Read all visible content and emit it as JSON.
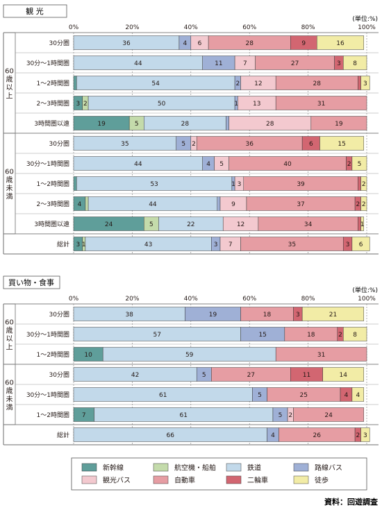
{
  "chart_data": [
    {
      "type": "bar",
      "orientation": "horizontal",
      "stacked": true,
      "title": "観 光",
      "unit_label": "(単位:%)",
      "xlim": [
        0,
        100
      ],
      "x_ticks": [
        "0%",
        "20%",
        "40%",
        "60%",
        "80%",
        "100%"
      ],
      "groups": [
        {
          "label": "60歳以上",
          "rows": [
            0,
            1,
            2,
            3,
            4
          ]
        },
        {
          "label": "60歳未満",
          "rows": [
            5,
            6,
            7,
            8,
            9
          ]
        }
      ],
      "categories": [
        "30分圏",
        "30分〜1時間圏",
        "1〜2時間圏",
        "2〜3時間圏",
        "3時間圏以遠",
        "30分圏",
        "30分〜1時間圏",
        "1〜2時間圏",
        "2〜3時間圏",
        "3時間圏以遠",
        "総計"
      ],
      "series": [
        {
          "name": "新幹線",
          "values": [
            0,
            0,
            1,
            3,
            19,
            0,
            0,
            1,
            4,
            24,
            3
          ],
          "labels": [
            "",
            "",
            "",
            "3",
            "19",
            "",
            "",
            "",
            "4",
            "24",
            "3"
          ]
        },
        {
          "name": "航空機・船舶",
          "values": [
            0,
            0,
            0,
            2,
            5,
            0,
            0,
            0,
            1,
            5,
            1
          ],
          "labels": [
            "",
            "",
            "",
            "2",
            "5",
            "",
            "",
            "",
            "",
            "5",
            "1"
          ]
        },
        {
          "name": "鉄道",
          "values": [
            36,
            44,
            54,
            50,
            28,
            35,
            44,
            53,
            44,
            22,
            43
          ],
          "labels": [
            "36",
            "44",
            "54",
            "50",
            "28",
            "35",
            "44",
            "53",
            "44",
            "22",
            "43"
          ]
        },
        {
          "name": "路線バス",
          "values": [
            4,
            11,
            2,
            1,
            1,
            5,
            4,
            1,
            1,
            0,
            3
          ],
          "labels": [
            "4",
            "11",
            "2",
            "1",
            "",
            "5",
            "4",
            "1",
            "",
            "",
            "3"
          ]
        },
        {
          "name": "観光バス",
          "values": [
            6,
            7,
            12,
            13,
            28,
            2,
            5,
            3,
            9,
            12,
            7
          ],
          "labels": [
            "6",
            "7",
            "12",
            "13",
            "28",
            "2",
            "5",
            "3",
            "9",
            "12",
            "7"
          ]
        },
        {
          "name": "自動車",
          "values": [
            28,
            27,
            28,
            31,
            19,
            36,
            40,
            39,
            37,
            34,
            35
          ],
          "labels": [
            "28",
            "27",
            "28",
            "31",
            "19",
            "36",
            "40",
            "39",
            "37",
            "34",
            "35"
          ]
        },
        {
          "name": "二輪車",
          "values": [
            9,
            3,
            1,
            0,
            0,
            6,
            2,
            1,
            2,
            1,
            3
          ],
          "labels": [
            "9",
            "3",
            "",
            "",
            "",
            "6",
            "2",
            "",
            "2",
            "",
            "3"
          ]
        },
        {
          "name": "徒歩",
          "values": [
            16,
            8,
            3,
            0,
            0,
            15,
            5,
            2,
            2,
            1,
            6
          ],
          "labels": [
            "16",
            "8",
            "3",
            "",
            "",
            "15",
            "5",
            "2",
            "2",
            "1",
            "6"
          ]
        }
      ]
    },
    {
      "type": "bar",
      "orientation": "horizontal",
      "stacked": true,
      "title": "買い物・食事",
      "unit_label": "(単位:%)",
      "xlim": [
        0,
        100
      ],
      "x_ticks": [
        "0%",
        "20%",
        "40%",
        "60%",
        "80%",
        "100%"
      ],
      "groups": [
        {
          "label": "60歳以上",
          "rows": [
            0,
            1,
            2
          ]
        },
        {
          "label": "60歳未満",
          "rows": [
            3,
            4,
            5
          ]
        }
      ],
      "categories": [
        "30分圏",
        "30分〜1時間圏",
        "1〜2時間圏",
        "30分圏",
        "30分〜1時間圏",
        "1〜2時間圏",
        "総計"
      ],
      "series": [
        {
          "name": "新幹線",
          "values": [
            0,
            0,
            10,
            0,
            0,
            7,
            0
          ],
          "labels": [
            "",
            "",
            "10",
            "",
            "",
            "7",
            ""
          ]
        },
        {
          "name": "航空機・船舶",
          "values": [
            0,
            0,
            0,
            0,
            0,
            0,
            0
          ],
          "labels": [
            "",
            "",
            "",
            "",
            "",
            "",
            ""
          ]
        },
        {
          "name": "鉄道",
          "values": [
            38,
            57,
            59,
            42,
            61,
            61,
            66
          ],
          "labels": [
            "38",
            "57",
            "59",
            "42",
            "61",
            "61",
            "66"
          ]
        },
        {
          "name": "路線バス",
          "values": [
            19,
            15,
            0,
            5,
            5,
            5,
            4
          ],
          "labels": [
            "19",
            "15",
            "",
            "5",
            "5",
            "5",
            "4"
          ]
        },
        {
          "name": "観光バス",
          "values": [
            0,
            0,
            0,
            0,
            0,
            2,
            0
          ],
          "labels": [
            "",
            "",
            "",
            "",
            "",
            "2",
            ""
          ]
        },
        {
          "name": "自動車",
          "values": [
            18,
            18,
            31,
            27,
            25,
            24,
            26
          ],
          "labels": [
            "18",
            "18",
            "31",
            "27",
            "25",
            "24",
            "26"
          ]
        },
        {
          "name": "二輪車",
          "values": [
            3,
            2,
            0,
            11,
            4,
            0,
            2
          ],
          "labels": [
            "3",
            "2",
            "",
            "11",
            "4",
            "",
            "2"
          ]
        },
        {
          "name": "徒歩",
          "values": [
            21,
            8,
            0,
            14,
            4,
            0,
            3
          ],
          "labels": [
            "21",
            "8",
            "",
            "14",
            "4",
            "",
            "3"
          ]
        }
      ]
    }
  ],
  "legend": {
    "items": [
      {
        "name": "新幹線",
        "color": "#5f9e9a"
      },
      {
        "name": "航空機・船舶",
        "color": "#c4dbab"
      },
      {
        "name": "鉄道",
        "color": "#c2d9ea"
      },
      {
        "name": "路線バス",
        "color": "#9fb0d6"
      },
      {
        "name": "観光バス",
        "color": "#f3c9cf"
      },
      {
        "name": "自動車",
        "color": "#e69da3"
      },
      {
        "name": "二輪車",
        "color": "#d26671"
      },
      {
        "name": "徒歩",
        "color": "#f2eca6"
      }
    ]
  },
  "source": "資料：回遊調査",
  "colors": {
    "grid": "#555555",
    "row_border": "#6d6d6d",
    "text": "#231815"
  }
}
